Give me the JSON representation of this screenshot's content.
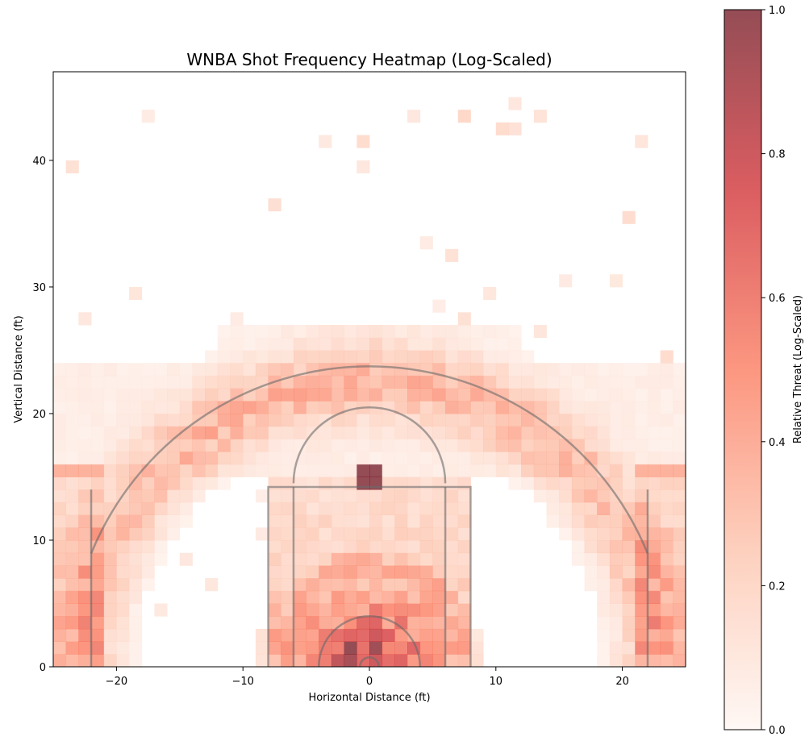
{
  "chart_data": {
    "type": "heatmap",
    "title": "WNBA Shot Frequency Heatmap (Log-Scaled)",
    "xlabel": "Horizontal Distance (ft)",
    "ylabel": "Vertical Distance (ft)",
    "xlim": [
      -25,
      25
    ],
    "ylim": [
      0,
      47
    ],
    "xticks": [
      -20,
      -10,
      0,
      10,
      20
    ],
    "xtick_labels": [
      "−20",
      "−10",
      "0",
      "10",
      "20"
    ],
    "yticks": [
      0,
      10,
      20,
      30,
      40
    ],
    "ytick_labels": [
      "0",
      "10",
      "20",
      "30",
      "40"
    ],
    "bin_size_ft": 1,
    "colormap": [
      "#fff5f0",
      "#fcbba1",
      "#fb6a4a",
      "#cb181d",
      "#67000d"
    ],
    "cell_alpha": 0.7,
    "grid": false,
    "colorbar": {
      "label": "Relative Threat (Log-Scaled)",
      "range": [
        0,
        1
      ],
      "ticks": [
        0,
        0.2,
        0.4,
        0.6,
        0.8,
        1.0
      ],
      "tick_labels": [
        "0.0",
        "0.2",
        "0.4",
        "0.6",
        "0.8",
        "1.0"
      ]
    },
    "hotspots": [
      {
        "x": 0,
        "y": 15,
        "value": 1.0,
        "note": "peak cell near free-throw line"
      },
      {
        "x": 0,
        "y": 2,
        "value": 0.75,
        "note": "restricted area near basket"
      }
    ],
    "density_description": "heat highest under the basket and in the paint, moderate along the three-point arc and corners, near zero beyond 32 ft",
    "court_overlay": {
      "color": "#6b6b6b",
      "three_point_radius": 23.75,
      "corner_three_x": 22,
      "corner_three_top_y": 14,
      "key_half_width": 8,
      "inner_key_half_width": 6,
      "free_throw_y": 14.2,
      "free_throw_circle_radius": 6,
      "restricted_area_radius": 4,
      "rim_radius": 0.75
    }
  }
}
